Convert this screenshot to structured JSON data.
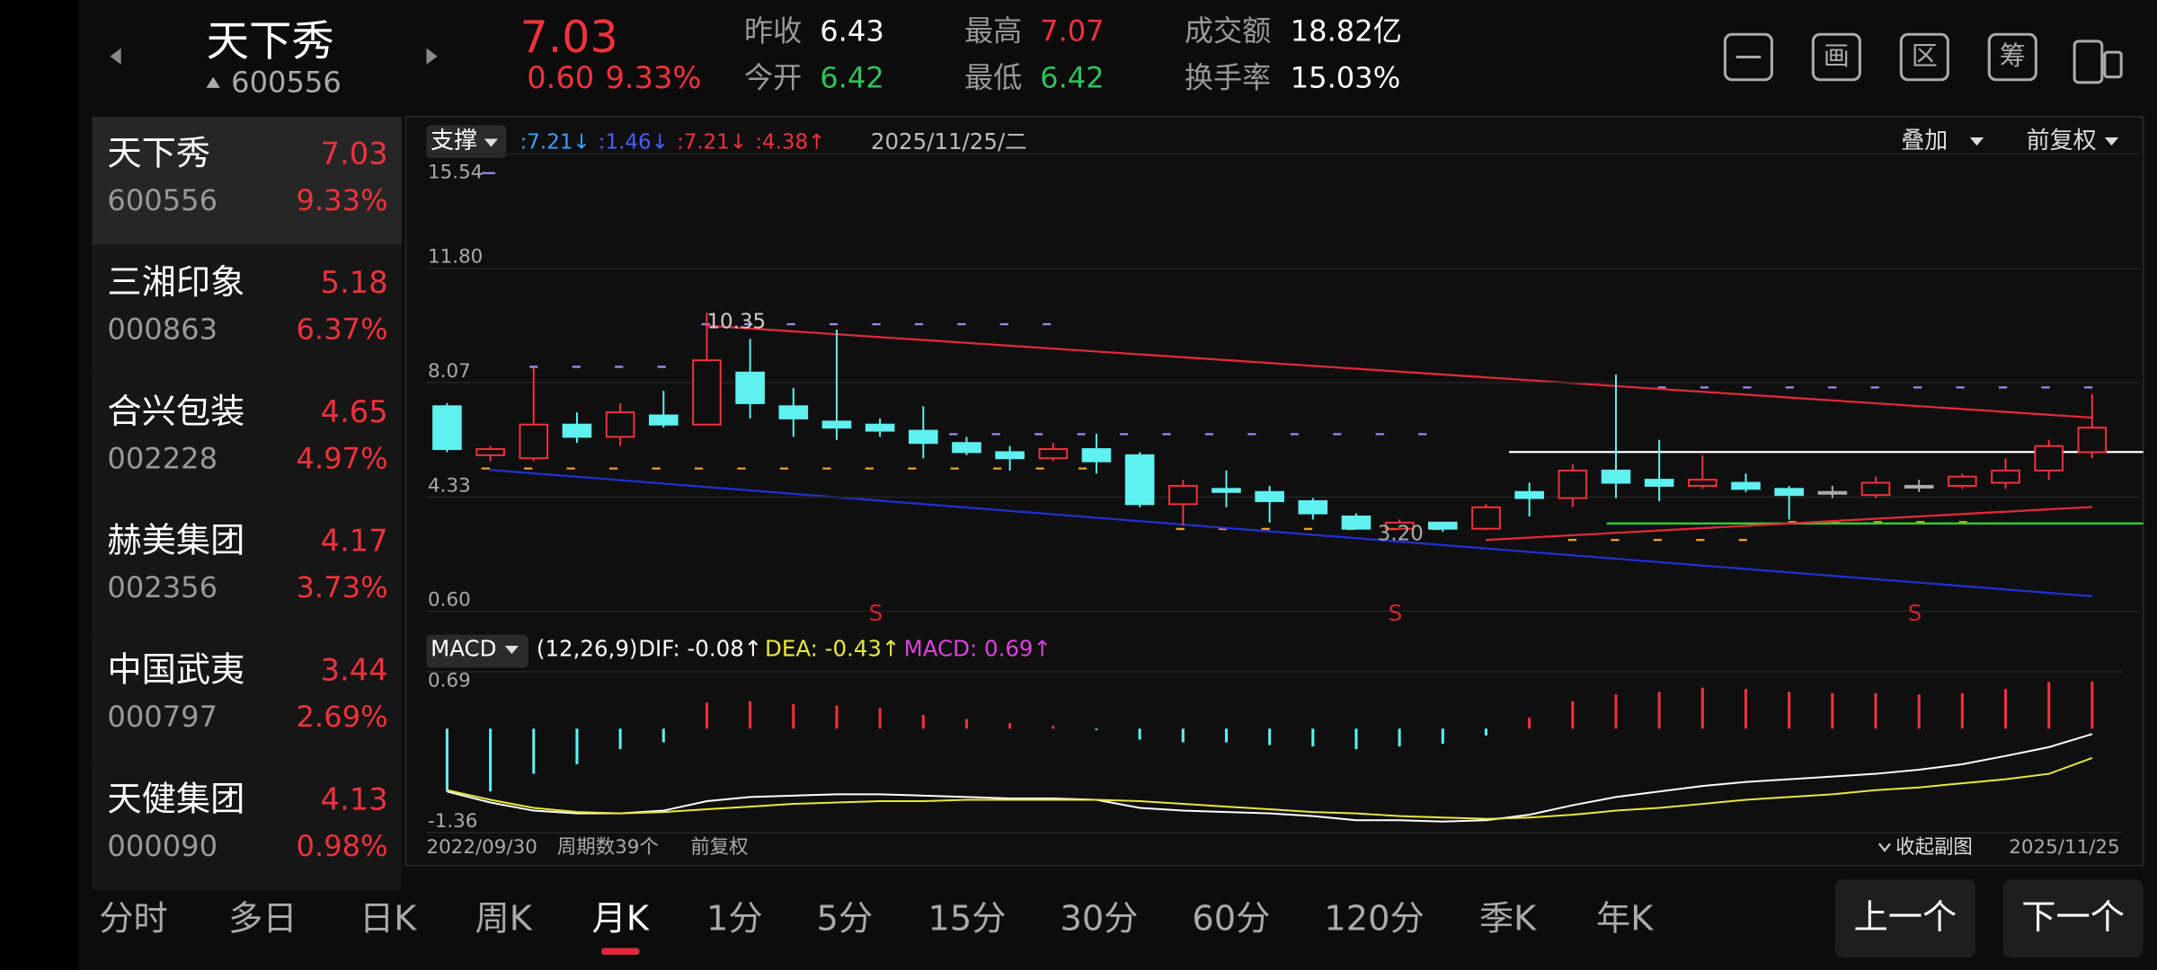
{
  "header": {
    "name": "天下秀",
    "code": "600556",
    "price": "7.03",
    "change": "0.60",
    "change_pct": "9.33%",
    "stats": [
      {
        "label": "昨收",
        "value": "6.43",
        "color": "#ffffff"
      },
      {
        "label": "今开",
        "value": "6.42",
        "color": "#2fc25b"
      },
      {
        "label": "最高",
        "value": "7.07",
        "color": "#f0323c"
      },
      {
        "label": "最低",
        "value": "6.42",
        "color": "#2fc25b"
      },
      {
        "label": "成交额",
        "value": "18.82亿",
        "color": "#ffffff"
      },
      {
        "label": "换手率",
        "value": "15.03%",
        "color": "#ffffff"
      }
    ],
    "tools": [
      "画",
      "区",
      "筹"
    ]
  },
  "watchlist": [
    {
      "name": "天下秀",
      "price": "7.03",
      "code": "600556",
      "pct": "9.33%"
    },
    {
      "name": "三湘印象",
      "price": "5.18",
      "code": "000863",
      "pct": "6.37%"
    },
    {
      "name": "合兴包装",
      "price": "4.65",
      "code": "002228",
      "pct": "4.97%"
    },
    {
      "name": "赫美集团",
      "price": "4.17",
      "code": "002356",
      "pct": "3.73%"
    },
    {
      "name": "中国武夷",
      "price": "3.44",
      "code": "000797",
      "pct": "2.69%"
    },
    {
      "name": "天健集团",
      "price": "4.13",
      "code": "000090",
      "pct": "0.98%"
    }
  ],
  "chart": {
    "type": "candlestick",
    "indicator": "支撑",
    "legend": [
      {
        "text": ":7.21↓",
        "color": "#3aa0ff"
      },
      {
        "text": ":1.46↓",
        "color": "#4a5cff"
      },
      {
        "text": ":7.21↓",
        "color": "#f0323c"
      },
      {
        "text": ":4.38↑",
        "color": "#f0323c"
      }
    ],
    "date": "2025/11/25/二",
    "overlay": "叠加",
    "adjust": "前复权",
    "ylim": [
      0.6,
      15.54
    ],
    "yticks": [
      {
        "value": 0.6,
        "label": "0.60"
      },
      4.33,
      8.07,
      {
        "value": 11.8,
        "label": "11.80"
      },
      15.54
    ],
    "colors": {
      "up": "#f0323c",
      "down": "#5ff0f0",
      "flat": "#aaaaaa"
    },
    "candles": {
      "open": [
        7.3,
        5.7,
        5.6,
        6.7,
        6.3,
        7.0,
        6.7,
        8.4,
        7.3,
        6.8,
        6.7,
        6.5,
        6.1,
        5.8,
        5.6,
        5.9,
        5.7,
        4.1,
        4.6,
        4.5,
        4.2,
        3.7,
        3.3,
        3.5,
        3.3,
        4.5,
        4.3,
        5.2,
        4.9,
        4.7,
        4.8,
        4.6,
        4.5,
        4.4,
        4.7,
        4.7,
        4.8,
        5.2,
        5.8
      ],
      "high": [
        7.4,
        6.0,
        8.56,
        7.1,
        7.4,
        7.8,
        10.35,
        9.5,
        7.9,
        9.8,
        6.9,
        7.3,
        6.3,
        6.0,
        6.1,
        6.4,
        5.8,
        4.9,
        5.2,
        4.7,
        4.3,
        3.8,
        3.6,
        3.5,
        4.1,
        4.8,
        5.4,
        8.33,
        6.2,
        5.7,
        5.1,
        4.7,
        4.7,
        5.0,
        4.9,
        5.1,
        5.6,
        6.2,
        7.7
      ],
      "low": [
        5.8,
        5.5,
        5.5,
        6.1,
        6.0,
        6.6,
        6.7,
        6.9,
        6.3,
        6.2,
        6.3,
        5.6,
        5.7,
        5.2,
        5.5,
        5.1,
        4.0,
        3.4,
        4.0,
        3.5,
        3.6,
        3.3,
        3.3,
        3.2,
        3.25,
        3.7,
        4.0,
        4.3,
        4.2,
        4.6,
        4.5,
        3.6,
        4.3,
        4.3,
        4.5,
        4.6,
        4.6,
        4.9,
        5.6
      ],
      "close": [
        5.9,
        5.9,
        6.7,
        6.3,
        7.1,
        6.7,
        8.8,
        7.4,
        6.9,
        6.6,
        6.5,
        6.1,
        5.8,
        5.6,
        5.9,
        5.5,
        4.1,
        4.7,
        4.5,
        4.2,
        3.8,
        3.3,
        3.5,
        3.3,
        4.0,
        4.3,
        5.2,
        4.8,
        4.7,
        4.9,
        4.6,
        4.4,
        4.5,
        4.8,
        4.7,
        5.0,
        5.2,
        6.0,
        6.6
      ]
    },
    "high_label": "10.35",
    "low_label": "3.20",
    "signals": [
      null,
      null,
      null,
      null,
      null,
      null,
      null,
      null,
      null,
      null,
      "S",
      null,
      null,
      null,
      null,
      null,
      null,
      null,
      null,
      null,
      null,
      null,
      "S",
      null,
      null,
      null,
      null,
      null,
      null,
      null,
      null,
      null,
      null,
      null,
      "S",
      null,
      null,
      null,
      null
    ],
    "macd": {
      "name": "MACD",
      "params": "(12,26,9)",
      "dif_label": "DIF: -0.08↑",
      "dea_label": "DEA: -0.43↑",
      "macd_label": "MACD: 0.69↑",
      "ylim": [
        -1.36,
        0.69
      ],
      "yticks": [
        -1.36,
        0.69
      ],
      "hist": [
        -0.92,
        -0.92,
        -0.66,
        -0.52,
        -0.3,
        -0.2,
        0.38,
        0.4,
        0.36,
        0.34,
        0.3,
        0.2,
        0.14,
        0.08,
        0.04,
        -0.02,
        -0.16,
        -0.2,
        -0.2,
        -0.24,
        -0.26,
        -0.3,
        -0.26,
        -0.22,
        -0.1,
        0.16,
        0.4,
        0.5,
        0.54,
        0.6,
        0.58,
        0.54,
        0.52,
        0.52,
        0.5,
        0.52,
        0.58,
        0.68,
        0.69
      ],
      "dif": [
        -0.92,
        -1.08,
        -1.2,
        -1.24,
        -1.24,
        -1.2,
        -1.06,
        -1.0,
        -0.98,
        -0.96,
        -0.96,
        -0.98,
        -1.0,
        -1.02,
        -1.02,
        -1.04,
        -1.16,
        -1.2,
        -1.22,
        -1.24,
        -1.28,
        -1.34,
        -1.34,
        -1.36,
        -1.34,
        -1.26,
        -1.12,
        -1.0,
        -0.92,
        -0.84,
        -0.78,
        -0.74,
        -0.7,
        -0.66,
        -0.6,
        -0.52,
        -0.4,
        -0.27,
        -0.08
      ],
      "dea": [
        -0.9,
        -1.04,
        -1.16,
        -1.22,
        -1.24,
        -1.22,
        -1.18,
        -1.14,
        -1.1,
        -1.08,
        -1.06,
        -1.06,
        -1.04,
        -1.04,
        -1.04,
        -1.04,
        -1.06,
        -1.1,
        -1.14,
        -1.18,
        -1.22,
        -1.24,
        -1.28,
        -1.3,
        -1.32,
        -1.3,
        -1.26,
        -1.2,
        -1.16,
        -1.1,
        -1.04,
        -1.0,
        -0.96,
        -0.9,
        -0.86,
        -0.8,
        -0.74,
        -0.66,
        -0.43
      ]
    },
    "footer": {
      "start": "2022/09/30",
      "periods": "周期数39个",
      "adjust": "前复权",
      "collapse": "收起副图",
      "end": "2025/11/25"
    }
  },
  "tabs": [
    "分时",
    "多日",
    "日K",
    "周K",
    "月K",
    "1分",
    "5分",
    "15分",
    "30分",
    "60分",
    "120分",
    "季K",
    "年K"
  ],
  "active_tab": "月K",
  "buttons": [
    "上一个",
    "下一个"
  ]
}
